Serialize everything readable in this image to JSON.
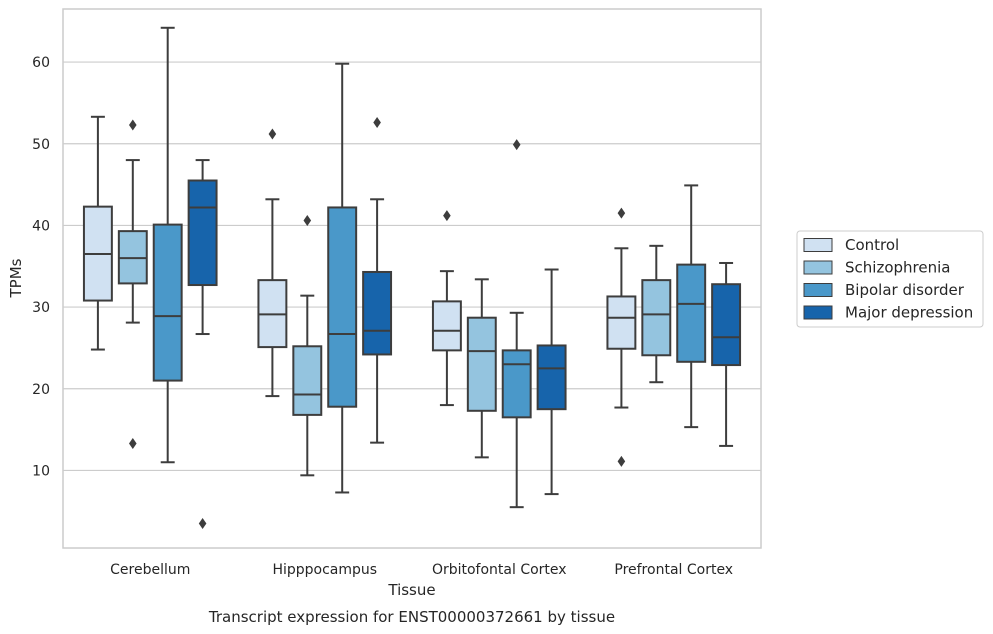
{
  "chart_data": {
    "type": "box",
    "title": "",
    "caption": "Transcript expression for ENST00000372661 by tissue",
    "xlabel": "Tissue",
    "ylabel": "TPMs",
    "ylim": [
      0.5,
      66.5
    ],
    "yticks": [
      10,
      20,
      30,
      40,
      50,
      60
    ],
    "grid": true,
    "legend_position": "right",
    "categories": [
      "Cerebellum",
      "Hipppocampus",
      "Orbitofontal Cortex",
      "Prefrontal Cortex"
    ],
    "series": [
      {
        "name": "Control",
        "color": "#d0e1f2",
        "boxes": [
          {
            "whislo": 24.8,
            "q1": 30.8,
            "med": 36.5,
            "q3": 42.3,
            "whishi": 53.3,
            "fliers": []
          },
          {
            "whislo": 19.1,
            "q1": 25.1,
            "med": 29.1,
            "q3": 33.3,
            "whishi": 43.2,
            "fliers": [
              51.2
            ]
          },
          {
            "whislo": 18.0,
            "q1": 24.7,
            "med": 27.1,
            "q3": 30.7,
            "whishi": 34.4,
            "fliers": [
              41.2
            ]
          },
          {
            "whislo": 17.7,
            "q1": 24.9,
            "med": 28.7,
            "q3": 31.3,
            "whishi": 37.2,
            "fliers": [
              41.5,
              11.1
            ]
          }
        ]
      },
      {
        "name": "Schizophrenia",
        "color": "#94c4df",
        "boxes": [
          {
            "whislo": 28.1,
            "q1": 32.9,
            "med": 36.0,
            "q3": 39.3,
            "whishi": 48.0,
            "fliers": [
              52.3,
              13.3
            ]
          },
          {
            "whislo": 9.4,
            "q1": 16.8,
            "med": 19.3,
            "q3": 25.2,
            "whishi": 31.4,
            "fliers": [
              40.6
            ]
          },
          {
            "whislo": 11.6,
            "q1": 17.3,
            "med": 24.6,
            "q3": 28.7,
            "whishi": 33.4,
            "fliers": []
          },
          {
            "whislo": 20.8,
            "q1": 24.1,
            "med": 29.1,
            "q3": 33.3,
            "whishi": 37.5,
            "fliers": []
          }
        ]
      },
      {
        "name": "Bipolar disorder",
        "color": "#4a98c9",
        "boxes": [
          {
            "whislo": 11.0,
            "q1": 21.0,
            "med": 28.9,
            "q3": 40.1,
            "whishi": 64.2,
            "fliers": []
          },
          {
            "whislo": 7.3,
            "q1": 17.8,
            "med": 26.7,
            "q3": 42.2,
            "whishi": 59.8,
            "fliers": []
          },
          {
            "whislo": 5.5,
            "q1": 16.5,
            "med": 23.0,
            "q3": 24.7,
            "whishi": 29.3,
            "fliers": [
              49.9
            ]
          },
          {
            "whislo": 15.3,
            "q1": 23.3,
            "med": 30.4,
            "q3": 35.2,
            "whishi": 44.9,
            "fliers": []
          }
        ]
      },
      {
        "name": "Major depression",
        "color": "#1764ab",
        "boxes": [
          {
            "whislo": 26.7,
            "q1": 32.7,
            "med": 42.2,
            "q3": 45.5,
            "whishi": 48.0,
            "fliers": [
              3.5
            ]
          },
          {
            "whislo": 13.4,
            "q1": 24.2,
            "med": 27.1,
            "q3": 34.3,
            "whishi": 43.2,
            "fliers": [
              52.6
            ]
          },
          {
            "whislo": 7.1,
            "q1": 17.5,
            "med": 22.5,
            "q3": 25.3,
            "whishi": 34.6,
            "fliers": []
          },
          {
            "whislo": 13.0,
            "q1": 22.9,
            "med": 26.3,
            "q3": 32.8,
            "whishi": 35.4,
            "fliers": []
          }
        ]
      }
    ]
  }
}
